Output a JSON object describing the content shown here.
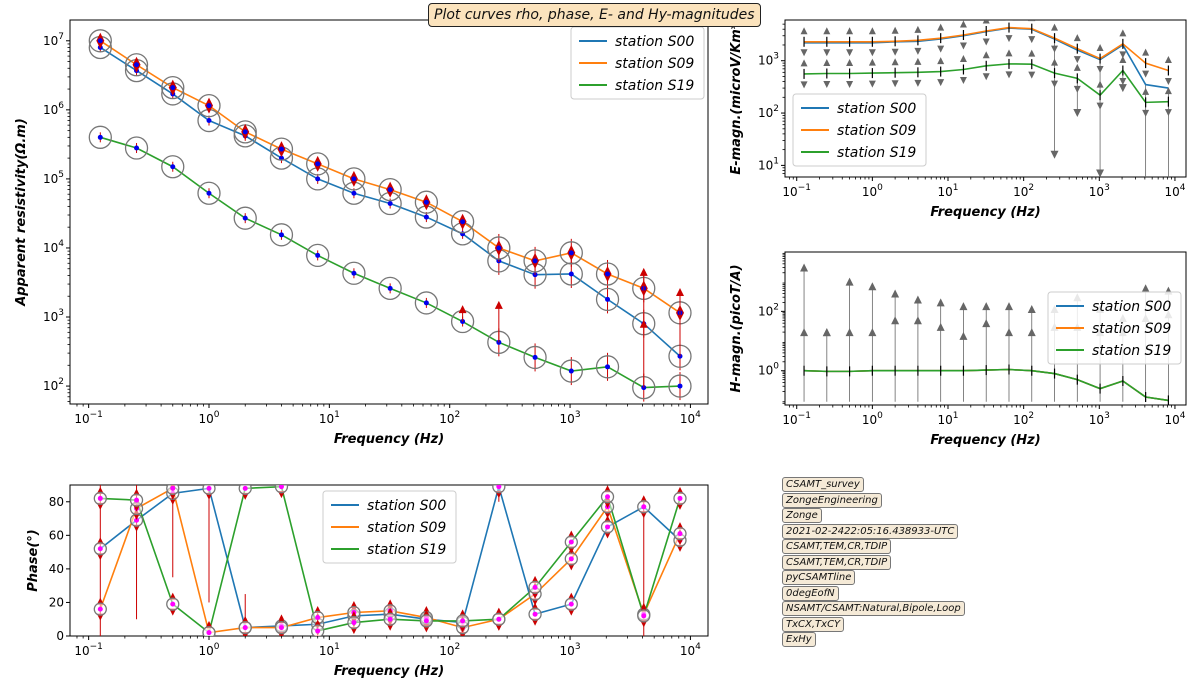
{
  "figure_title": "Plot curves rho, phase, E- and Hy-magnitudes",
  "metadata_labels": [
    "CSAMT_survey",
    "ZongeEngineering",
    "Zonge",
    "2021-02-2422:05:16.438933-UTC",
    "CSAMT,TEM,CR,TDIP",
    "CSAMT,TEM,CR,TDIP",
    "pyCSAMTline",
    "0degEofN",
    "NSAMT/CSAMT:Natural,Bipole,Loop",
    "TxCX,TxCY",
    "ExHy"
  ],
  "colors": {
    "S00": "#1f77b4",
    "S09": "#ff7f0e",
    "S19": "#2ca02c",
    "errorbar": "#cc0000",
    "marker": "#0000ee",
    "phase_marker": "#ff00ff",
    "circle": "#777777",
    "gray_marker": "#666666"
  },
  "chart_data": [
    {
      "type": "line",
      "title": "",
      "xlabel": "Frequency (Hz)",
      "ylabel": "Apparent resistivity(Ω.m)",
      "xscale": "log",
      "yscale": "log",
      "xlim": [
        0.07,
        14000
      ],
      "ylim": [
        55,
        20000000
      ],
      "xticks": [
        "10^-1",
        "10^0",
        "10^1",
        "10^2",
        "10^3",
        "10^4"
      ],
      "yticks": [
        "10^2",
        "10^3",
        "10^4",
        "10^5",
        "10^6",
        "10^7"
      ],
      "legend_position": "top-right",
      "x": [
        0.125,
        0.25,
        0.5,
        1,
        2,
        4,
        8,
        16,
        32,
        64,
        128,
        256,
        512,
        1024,
        2048,
        4096,
        8192
      ],
      "series": [
        {
          "name": "station S00",
          "values": [
            8000000,
            3700000,
            1700000,
            700000,
            420000,
            200000,
            100000,
            62000,
            44000,
            28000,
            16000,
            6500,
            4100,
            4200,
            1800,
            800,
            270
          ]
        },
        {
          "name": "station S09",
          "values": [
            10000000,
            4500000,
            2100000,
            1150000,
            480000,
            270000,
            165000,
            100000,
            70000,
            46000,
            24000,
            10000,
            6500,
            8500,
            4200,
            2600,
            1150
          ]
        },
        {
          "name": "station S19",
          "values": [
            400000,
            280000,
            150000,
            62000,
            27000,
            15500,
            7800,
            4300,
            2600,
            1600,
            860,
            430,
            260,
            165,
            190,
            95,
            100
          ]
        }
      ]
    },
    {
      "type": "line",
      "title": "",
      "xlabel": "Frequency (Hz)",
      "ylabel": "Phase(°)",
      "xscale": "log",
      "yscale": "linear",
      "xlim": [
        0.07,
        14000
      ],
      "ylim": [
        0,
        90
      ],
      "xticks": [
        "10^-1",
        "10^0",
        "10^1",
        "10^2",
        "10^3",
        "10^4"
      ],
      "yticks": [
        "0",
        "20",
        "40",
        "60",
        "80"
      ],
      "legend_position": "top-center",
      "x": [
        0.125,
        0.25,
        0.5,
        1,
        2,
        4,
        8,
        16,
        32,
        64,
        128,
        256,
        512,
        1024,
        2048,
        4096,
        8192
      ],
      "series": [
        {
          "name": "station S00",
          "values": [
            52,
            69,
            85,
            88,
            5,
            6,
            7,
            12,
            13,
            10,
            8,
            89,
            13,
            19,
            65,
            77,
            57
          ]
        },
        {
          "name": "station S09",
          "values": [
            16,
            76,
            88,
            2,
            5,
            5,
            11,
            14,
            15,
            11,
            5,
            10,
            25,
            46,
            77,
            13,
            61
          ]
        },
        {
          "name": "station S19",
          "values": [
            82,
            81,
            19,
            2,
            88,
            89,
            3,
            8,
            10,
            9,
            9,
            10,
            29,
            56,
            83,
            12,
            82
          ]
        }
      ]
    },
    {
      "type": "line",
      "title": "",
      "xlabel": "Frequency (Hz)",
      "ylabel": "E-magn.(microV/Km*",
      "xscale": "log",
      "yscale": "log",
      "xlim": [
        0.07,
        14000
      ],
      "ylim": [
        6,
        6000
      ],
      "xticks": [
        "10^-1",
        "10^0",
        "10^1",
        "10^2",
        "10^3",
        "10^4"
      ],
      "yticks": [
        "10^1",
        "10^2",
        "10^3"
      ],
      "legend_position": "center-left",
      "x": [
        0.125,
        0.25,
        0.5,
        1,
        2,
        4,
        8,
        16,
        32,
        64,
        128,
        256,
        512,
        1024,
        2048,
        4096,
        8192
      ],
      "series": [
        {
          "name": "station S00",
          "values": [
            2200,
            2200,
            2200,
            2200,
            2300,
            2350,
            2600,
            3000,
            3600,
            4200,
            4000,
            2600,
            1600,
            1050,
            2000,
            350,
            300
          ]
        },
        {
          "name": "station S09",
          "values": [
            2300,
            2300,
            2300,
            2300,
            2350,
            2450,
            2700,
            3100,
            3700,
            4300,
            4100,
            2700,
            1700,
            1100,
            2100,
            900,
            650
          ]
        },
        {
          "name": "station S19",
          "values": [
            560,
            570,
            570,
            580,
            590,
            600,
            620,
            680,
            800,
            870,
            860,
            580,
            460,
            220,
            650,
            160,
            165
          ]
        }
      ]
    },
    {
      "type": "line",
      "title": "",
      "xlabel": "Frequency (Hz)",
      "ylabel": "H-magn.(picoT/A)",
      "xscale": "log",
      "yscale": "log",
      "xlim": [
        0.07,
        14000
      ],
      "ylim": [
        0.07,
        10000
      ],
      "xticks": [
        "10^-1",
        "10^0",
        "10^1",
        "10^2",
        "10^3",
        "10^4"
      ],
      "yticks": [
        "10^0",
        "10^2"
      ],
      "legend_position": "center-right",
      "x": [
        0.125,
        0.25,
        0.5,
        1,
        2,
        4,
        8,
        16,
        32,
        64,
        128,
        256,
        512,
        1024,
        2048,
        4096,
        8192
      ],
      "series": [
        {
          "name": "station S00",
          "values": [
            1.0,
            0.95,
            0.95,
            1.0,
            1.0,
            1.0,
            1.0,
            1.0,
            1.05,
            1.1,
            1.0,
            0.8,
            0.5,
            0.25,
            0.45,
            0.13,
            0.1
          ]
        },
        {
          "name": "station S09",
          "values": [
            1.0,
            0.95,
            0.95,
            1.0,
            1.0,
            1.0,
            1.0,
            1.0,
            1.05,
            1.1,
            1.0,
            0.8,
            0.5,
            0.25,
            0.45,
            0.13,
            0.1
          ]
        },
        {
          "name": "station S19",
          "values": [
            1.0,
            0.95,
            0.95,
            1.0,
            1.0,
            1.0,
            1.0,
            1.0,
            1.05,
            1.1,
            1.0,
            0.8,
            0.5,
            0.25,
            0.45,
            0.13,
            0.1
          ]
        }
      ]
    }
  ]
}
